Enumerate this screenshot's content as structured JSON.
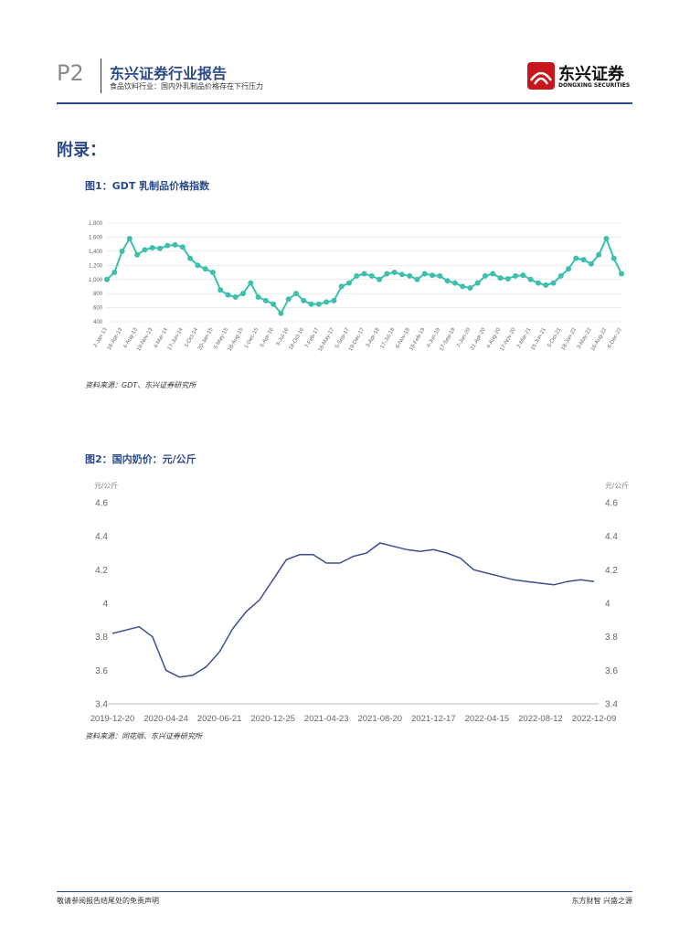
{
  "header": {
    "page": "P2",
    "title": "东兴证券行业报告",
    "subtitle": "食品饮料行业：国内外乳制品价格存在下行压力",
    "logo_name": "东兴证券",
    "logo_sub": "DONGXING SECURITIES"
  },
  "section_title": "附录：",
  "chart_data": [
    {
      "type": "line",
      "title": "图1：GDT 乳制品价格指数",
      "source": "资料来源：GDT、东兴证券研究所",
      "color": "#3dbfad",
      "markers": true,
      "grid": true,
      "categories": [
        "2-Jan-13",
        null,
        "16-Apr-13",
        null,
        "4-Aug-13",
        null,
        "19-Nov-13",
        null,
        "4-Mar-14",
        null,
        "17-Jun-14",
        null,
        "1-Oct-14",
        null,
        "20-Jan-15",
        null,
        "5-May-15",
        null,
        "18-Aug-15",
        null,
        "1-Dec-15",
        null,
        "5-Apr-16",
        null,
        "3-Jul-16",
        null,
        "18-Oct-16",
        null,
        "7-Feb-17",
        null,
        "16-May-17",
        null,
        "5-Sep-17",
        null,
        "19-Dec-17",
        null,
        "3-Apr-18",
        null,
        "17-Jul-18",
        null,
        "6-Nov-18",
        null,
        "19-Feb-19",
        null,
        "4-Jun-19",
        null,
        "17-Sep-19",
        null,
        "7-Jan-20",
        null,
        "21-Apr-20",
        null,
        "4-Aug-20",
        null,
        "17-Nov-20",
        null,
        "2-Mar-21",
        null,
        "15-Jun-21",
        null,
        "5-Oct-21",
        null,
        "18-Jan-22",
        null,
        "3-May-22",
        null,
        "16-Aug-22",
        null,
        "6-Dec-22"
      ],
      "values": [
        1000,
        1100,
        1400,
        1580,
        1350,
        1420,
        1450,
        1440,
        1480,
        1490,
        1460,
        1300,
        1200,
        1150,
        1100,
        850,
        780,
        750,
        800,
        950,
        750,
        700,
        650,
        520,
        720,
        800,
        700,
        650,
        650,
        680,
        700,
        900,
        950,
        1050,
        1080,
        1050,
        1000,
        1080,
        1100,
        1070,
        1050,
        1000,
        1080,
        1060,
        1050,
        980,
        950,
        900,
        880,
        950,
        1050,
        1080,
        1020,
        1010,
        1050,
        1060,
        1000,
        950,
        920,
        950,
        1050,
        1150,
        1300,
        1280,
        1220,
        1350,
        1580,
        1300,
        1080
      ],
      "ylim": [
        400,
        1800
      ],
      "yticks": [
        400,
        600,
        800,
        {
          "value": 1000,
          "label": "1,000"
        },
        {
          "value": 1200,
          "label": "1,200"
        },
        {
          "value": 1400,
          "label": "1,400"
        },
        {
          "value": 1600,
          "label": "1,600"
        },
        {
          "value": 1800,
          "label": "1,800"
        }
      ]
    },
    {
      "type": "line",
      "title": "图2：国内奶价：元/公斤",
      "source": "资料来源：同花顺、东兴证券研究所",
      "color": "#3f4d8f",
      "markers": false,
      "grid": false,
      "y_unit": "元/公斤",
      "y2_unit": "元/公斤",
      "categories": [
        "2019-12-20",
        null,
        null,
        null,
        "2020-04-24",
        null,
        null,
        null,
        "2020-06-21",
        null,
        null,
        null,
        "2020-12-25",
        null,
        null,
        null,
        "2021-04-23",
        null,
        null,
        null,
        "2021-08-20",
        null,
        null,
        null,
        "2021-12-17",
        null,
        null,
        null,
        "2022-04-15",
        null,
        null,
        null,
        "2022-08-12",
        null,
        null,
        null,
        "2022-12-09"
      ],
      "values": [
        3.82,
        3.84,
        3.86,
        3.8,
        3.6,
        3.56,
        3.57,
        3.62,
        3.71,
        3.85,
        3.95,
        4.02,
        4.14,
        4.26,
        4.29,
        4.29,
        4.24,
        4.24,
        4.28,
        4.3,
        4.36,
        4.34,
        4.32,
        4.31,
        4.32,
        4.3,
        4.27,
        4.2,
        4.18,
        4.16,
        4.14,
        4.13,
        4.12,
        4.11,
        4.13,
        4.14,
        4.13
      ],
      "ylim": [
        3.4,
        4.6
      ],
      "yticks": [
        3.4,
        3.6,
        3.8,
        4,
        4.2,
        4.4,
        4.6
      ],
      "y2lim": [
        3.4,
        4.6
      ],
      "y2ticks": [
        3.4,
        3.6,
        3.8,
        4,
        4.2,
        4.4,
        4.6
      ]
    }
  ],
  "footer": {
    "left": "敬请参阅报告结尾处的免责声明",
    "right": "东方财智 兴盛之源"
  }
}
